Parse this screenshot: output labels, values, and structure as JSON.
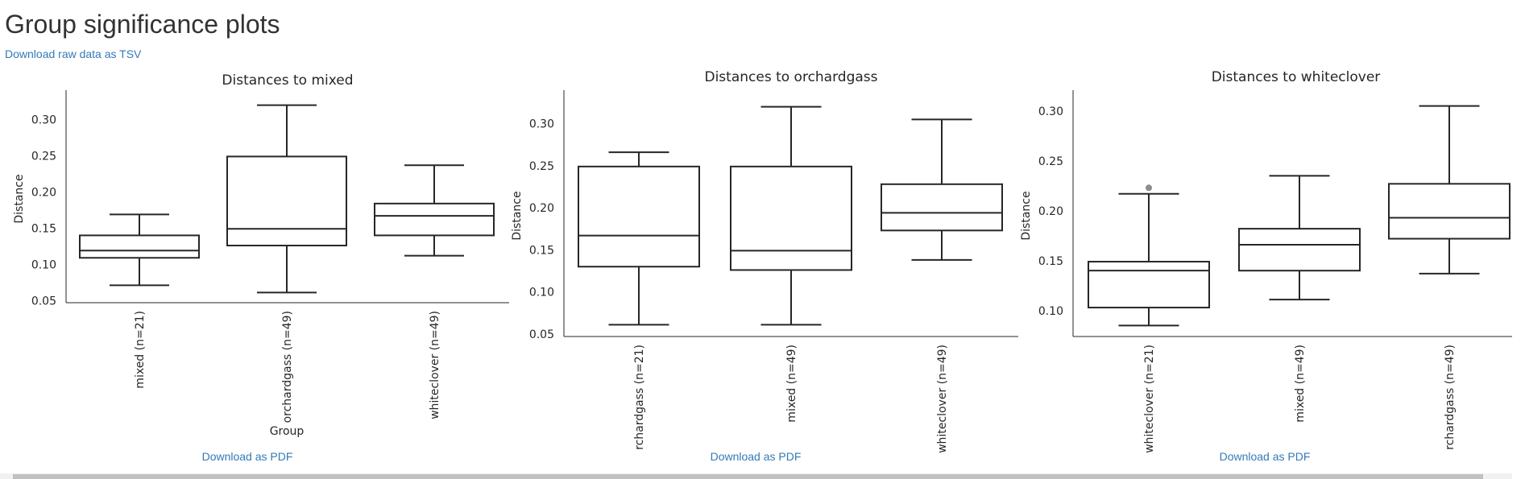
{
  "page": {
    "title": "Group significance plots",
    "raw_link": "Download raw data as TSV",
    "pdf_link": "Download as PDF",
    "link_color": "#337ab7"
  },
  "chart_data": [
    {
      "type": "box",
      "title": "Distances to mixed",
      "xlabel": "Group",
      "ylabel": "Distance",
      "ylim": [
        0.047,
        0.334
      ],
      "yticks": [
        "0.05",
        "0.10",
        "0.15",
        "0.20",
        "0.25",
        "0.30"
      ],
      "categories": [
        "mixed (n=21)",
        "orchardgass (n=49)",
        "whiteclover (n=49)"
      ],
      "boxes": [
        {
          "whisker_low": 0.071,
          "q1": 0.109,
          "median": 0.119,
          "q3": 0.14,
          "whisker_high": 0.169,
          "outliers": []
        },
        {
          "whisker_low": 0.061,
          "q1": 0.126,
          "median": 0.149,
          "q3": 0.249,
          "whisker_high": 0.32,
          "outliers": []
        },
        {
          "whisker_low": 0.112,
          "q1": 0.14,
          "median": 0.167,
          "q3": 0.184,
          "whisker_high": 0.237,
          "outliers": []
        }
      ]
    },
    {
      "type": "box",
      "title": "Distances to orchardgass",
      "xlabel": "",
      "ylabel": "Distance",
      "ylim": [
        0.047,
        0.334
      ],
      "yticks": [
        "0.05",
        "0.10",
        "0.15",
        "0.20",
        "0.25",
        "0.30"
      ],
      "categories": [
        "rchardgass (n=21)",
        "mixed (n=49)",
        "whiteclover (n=49)"
      ],
      "boxes": [
        {
          "whisker_low": 0.061,
          "q1": 0.13,
          "median": 0.167,
          "q3": 0.249,
          "whisker_high": 0.266,
          "outliers": []
        },
        {
          "whisker_low": 0.061,
          "q1": 0.126,
          "median": 0.149,
          "q3": 0.249,
          "whisker_high": 0.32,
          "outliers": []
        },
        {
          "whisker_low": 0.138,
          "q1": 0.173,
          "median": 0.194,
          "q3": 0.228,
          "whisker_high": 0.305,
          "outliers": []
        }
      ]
    },
    {
      "type": "box",
      "title": "Distances to whiteclover",
      "xlabel": "",
      "ylabel": "Distance",
      "ylim": [
        0.074,
        0.316
      ],
      "yticks": [
        "0.10",
        "0.15",
        "0.20",
        "0.25",
        "0.30"
      ],
      "categories": [
        "whiteclover (n=21)",
        "mixed (n=49)",
        "rchardgass (n=49)"
      ],
      "boxes": [
        {
          "whisker_low": 0.085,
          "q1": 0.103,
          "median": 0.14,
          "q3": 0.149,
          "whisker_high": 0.217,
          "outliers": [
            0.223
          ]
        },
        {
          "whisker_low": 0.111,
          "q1": 0.14,
          "median": 0.166,
          "q3": 0.182,
          "whisker_high": 0.235,
          "outliers": []
        },
        {
          "whisker_low": 0.137,
          "q1": 0.172,
          "median": 0.193,
          "q3": 0.227,
          "whisker_high": 0.305,
          "outliers": []
        }
      ]
    }
  ]
}
